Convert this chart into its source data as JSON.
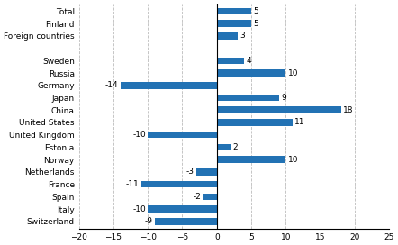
{
  "categories": [
    "Switzerland",
    "Italy",
    "Spain",
    "France",
    "Netherlands",
    "Norway",
    "Estonia",
    "United Kingdom",
    "United States",
    "China",
    "Japan",
    "Germany",
    "Russia",
    "Sweden",
    "",
    "Foreign countries",
    "Finland",
    "Total"
  ],
  "values": [
    -9,
    -10,
    -2,
    -11,
    -3,
    10,
    2,
    -10,
    11,
    18,
    9,
    -14,
    10,
    4,
    0,
    3,
    5,
    5
  ],
  "has_bar": [
    true,
    true,
    true,
    true,
    true,
    true,
    true,
    true,
    true,
    true,
    true,
    true,
    true,
    true,
    false,
    true,
    true,
    true
  ],
  "bar_color": "#2272b4",
  "xlim": [
    -20,
    25
  ],
  "xticks": [
    -20,
    -15,
    -10,
    -5,
    0,
    5,
    10,
    15,
    20,
    25
  ],
  "bar_height": 0.55,
  "label_fontsize": 6.5,
  "tick_fontsize": 6.5,
  "background_color": "#ffffff",
  "grid_color": "#bbbbbb"
}
